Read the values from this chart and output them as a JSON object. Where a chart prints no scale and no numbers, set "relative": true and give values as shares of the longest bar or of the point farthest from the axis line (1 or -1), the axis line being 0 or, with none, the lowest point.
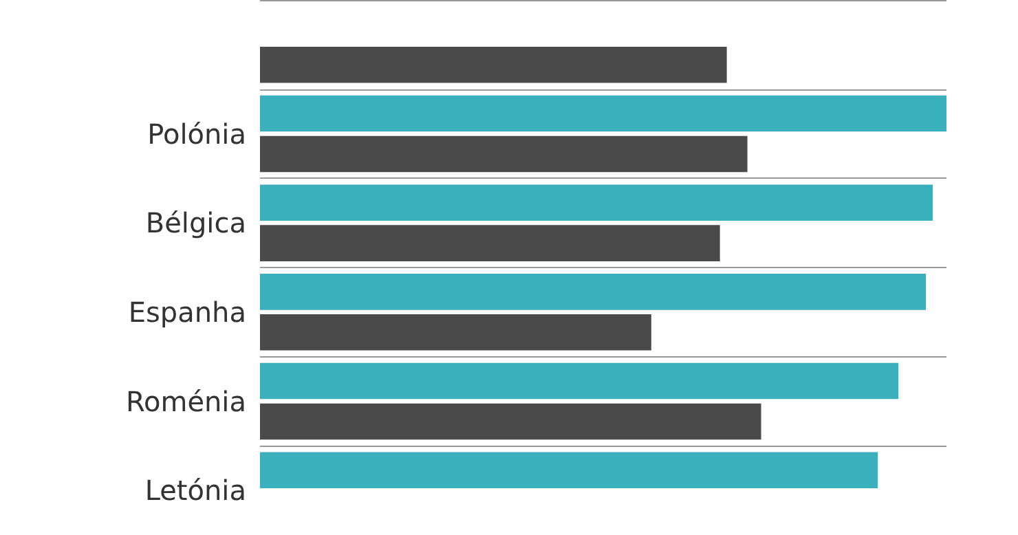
{
  "chart_data": {
    "type": "bar",
    "orientation": "horizontal",
    "relative": true,
    "grid": "y",
    "categories": [
      null,
      "Polónia",
      "Bélgica",
      "Espanha",
      "Roménia",
      "Letónia"
    ],
    "series": [
      {
        "color": "#3ab0bd",
        "values": [
          null,
          1,
          0.98,
          0.97,
          0.93,
          0.9
        ]
      },
      {
        "color": "#4a4a4a",
        "values": [
          0.68,
          0.71,
          0.67,
          0.57,
          0.73,
          null
        ]
      }
    ]
  }
}
